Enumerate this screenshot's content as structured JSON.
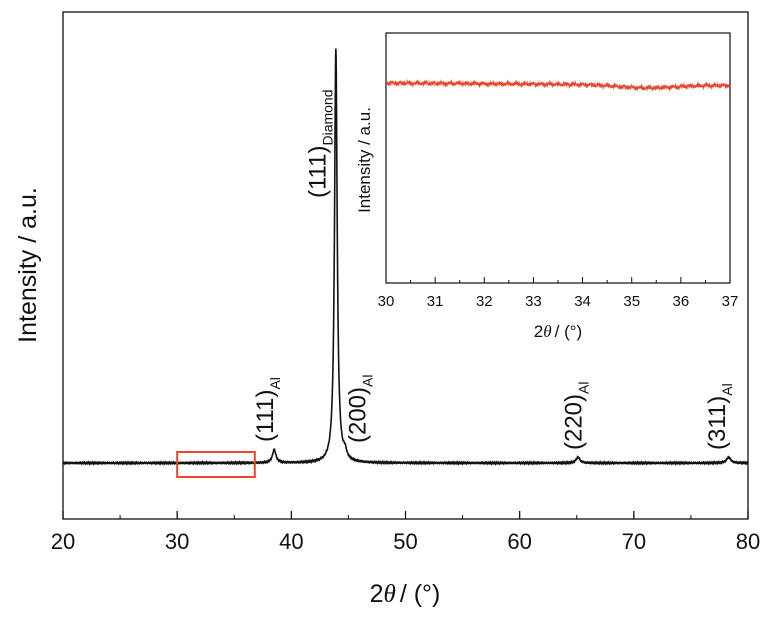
{
  "chart_data": [
    {
      "type": "line",
      "xlabel": {
        "prefix": "2",
        "symbol": "θ",
        "unit": "/ (°)"
      },
      "ylabel": "Intensity / a.u.",
      "xlim": [
        20,
        80
      ],
      "xticks": [
        "20",
        "30",
        "40",
        "50",
        "60",
        "70",
        "80"
      ],
      "y_axis_ticks": false,
      "line_color": "#111111",
      "peaks": [
        {
          "x": 38.5,
          "height": 0.032,
          "width": 0.18
        },
        {
          "x": 43.9,
          "height": 1.0,
          "width": 0.14
        },
        {
          "x": 44.7,
          "height": 0.018,
          "width": 0.16
        },
        {
          "x": 65.1,
          "height": 0.014,
          "width": 0.2
        },
        {
          "x": 78.3,
          "height": 0.014,
          "width": 0.22
        }
      ],
      "annotations": [
        {
          "id": "al111",
          "main": "(111)",
          "sub": "Al",
          "x": 38.4
        },
        {
          "id": "diamond111",
          "main": "(111)",
          "sub": "Diamond",
          "x": 43.0
        },
        {
          "id": "al200",
          "main": "(200)",
          "sub": "Al",
          "x": 46.5
        },
        {
          "id": "al220",
          "main": "(220)",
          "sub": "Al",
          "x": 65.4
        },
        {
          "id": "al311",
          "main": "(311)",
          "sub": "Al",
          "x": 78.0
        }
      ],
      "highlight_box": {
        "x_range": [
          30,
          36.8
        ],
        "color": "#e8472b"
      }
    },
    {
      "type": "line",
      "role": "inset",
      "xlabel": {
        "prefix": "2",
        "symbol": "θ",
        "unit": "/ (°)"
      },
      "ylabel": "Intensity / a.u.",
      "xlim": [
        30,
        37
      ],
      "xticks": [
        "30",
        "31",
        "32",
        "33",
        "34",
        "35",
        "36",
        "37"
      ],
      "y_axis_ticks": false,
      "line_color": "#e8472b",
      "level_start": 0.8,
      "level_end": 0.79,
      "dip_center": 35.3,
      "dip_depth": 0.012
    }
  ]
}
